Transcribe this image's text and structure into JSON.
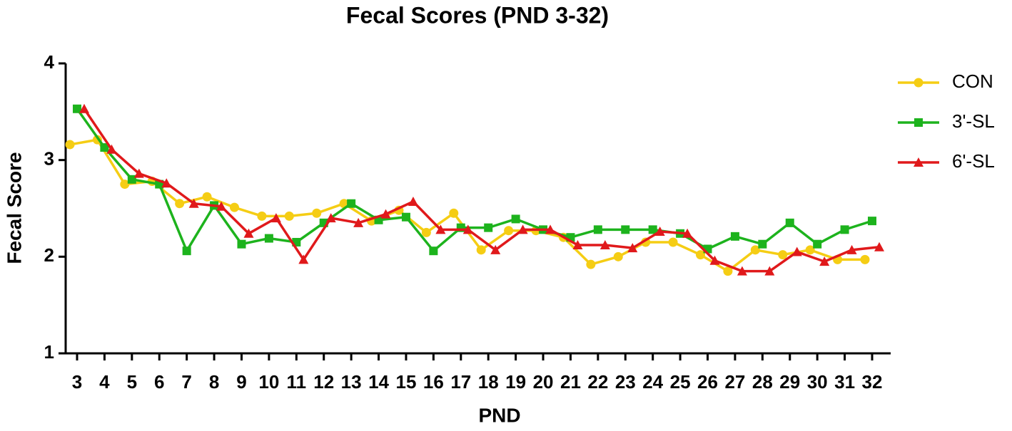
{
  "chart_data": {
    "type": "line",
    "title": "Fecal Scores (PND 3-32)",
    "x_label": "PND",
    "y_label": "Fecal Score",
    "categories": [
      "3",
      "4",
      "5",
      "6",
      "7",
      "8",
      "9",
      "10",
      "11",
      "12",
      "13",
      "14",
      "15",
      "16",
      "17",
      "18",
      "19",
      "20",
      "21",
      "22",
      "23",
      "24",
      "25",
      "26",
      "27",
      "28",
      "29",
      "30",
      "31",
      "32"
    ],
    "series": [
      {
        "name": "CON",
        "color": "#f5cd14",
        "values": [
          3.16,
          3.21,
          2.75,
          2.78,
          2.55,
          2.62,
          2.51,
          2.42,
          2.42,
          2.45,
          2.55,
          2.37,
          2.48,
          2.25,
          2.45,
          2.07,
          2.27,
          2.27,
          2.2,
          1.92,
          2.0,
          2.15,
          2.15,
          2.02,
          1.85,
          2.07,
          2.02,
          2.07,
          1.97,
          1.97
        ]
      },
      {
        "name": "3'-SL",
        "color": "#1db31d",
        "values": [
          3.53,
          3.13,
          2.8,
          2.75,
          2.06,
          2.53,
          2.13,
          2.19,
          2.15,
          2.35,
          2.55,
          2.38,
          2.41,
          2.06,
          2.3,
          2.3,
          2.39,
          2.28,
          2.2,
          2.28,
          2.28,
          2.28,
          2.24,
          2.08,
          2.21,
          2.13,
          2.35,
          2.13,
          2.28,
          2.37
        ]
      },
      {
        "name": "6'-SL",
        "color": "#e0191b",
        "values": [
          3.53,
          3.11,
          2.86,
          2.76,
          2.55,
          2.52,
          2.24,
          2.4,
          1.97,
          2.4,
          2.35,
          2.44,
          2.57,
          2.28,
          2.28,
          2.07,
          2.28,
          2.28,
          2.12,
          2.12,
          2.09,
          2.26,
          2.24,
          1.96,
          1.85,
          1.85,
          2.05,
          1.95,
          2.07,
          2.1
        ]
      }
    ],
    "ylim": [
      1,
      4
    ],
    "yticks": [
      1,
      2,
      3,
      4
    ],
    "legend": "right"
  }
}
